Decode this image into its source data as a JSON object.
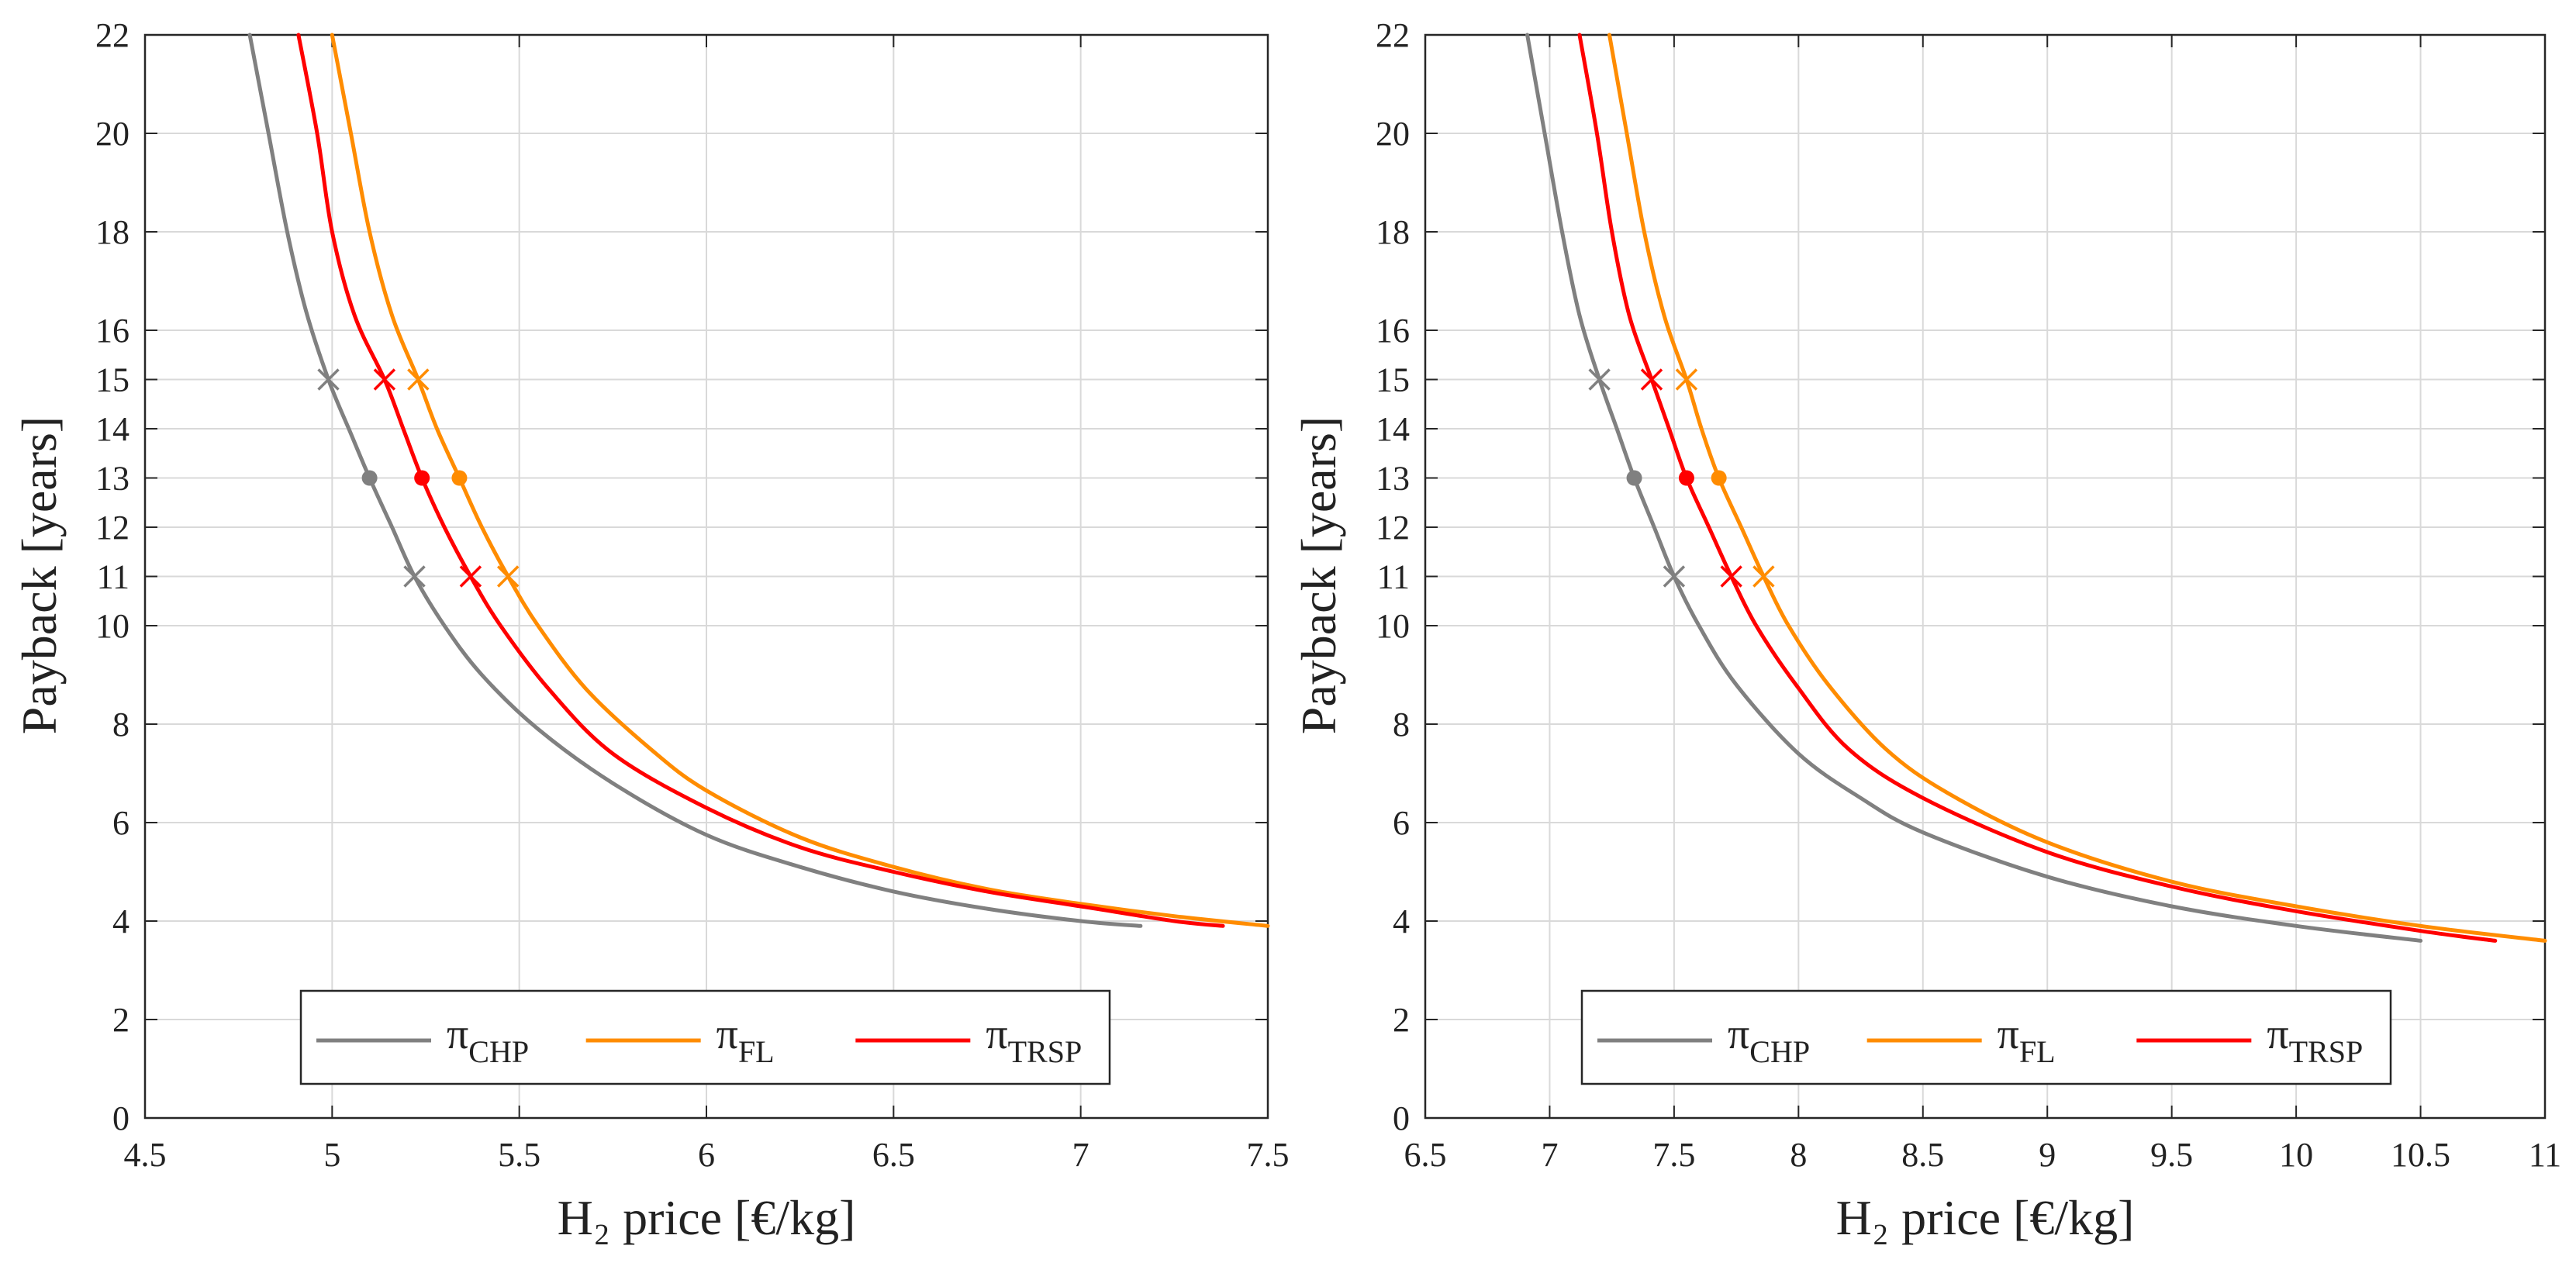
{
  "colors": {
    "CHP": "#808080",
    "FL": "#ff8c00",
    "TRSP": "#ff0000",
    "grid": "#d9d9d9",
    "axis": "#262626"
  },
  "chart_data": [
    {
      "type": "line",
      "xlabel": "H₂ price [€/kg]",
      "ylabel": "Payback [years]",
      "xlim": [
        4.5,
        7.5
      ],
      "ylim": [
        0,
        22
      ],
      "xticks": [
        4.5,
        5,
        5.5,
        6,
        6.5,
        7,
        7.5
      ],
      "xtick_labels": [
        "4.5",
        "5",
        "5.5",
        "6",
        "6.5",
        "7",
        "7.5"
      ],
      "yticks": [
        0,
        2,
        4,
        6,
        8,
        10,
        11,
        12,
        13,
        14,
        15,
        16,
        18,
        20,
        22
      ],
      "ytick_labels": [
        "0",
        "2",
        "4",
        "6",
        "8",
        "10",
        "11",
        "12",
        "13",
        "14",
        "15",
        "16",
        "18",
        "20",
        "22"
      ],
      "grid": true,
      "legend_position": "bottom-center",
      "series": [
        {
          "key": "CHP",
          "name": "π",
          "sub": "CHP",
          "x": [
            4.78,
            4.83,
            4.88,
            4.93,
            4.99,
            5.05,
            5.1,
            5.16,
            5.22,
            5.3,
            5.4,
            5.55,
            5.75,
            6.0,
            6.25,
            6.5,
            6.75,
            7.0,
            7.16
          ],
          "y": [
            22.0,
            20.0,
            18.0,
            16.4,
            15.0,
            13.9,
            13.0,
            12.0,
            11.0,
            10.0,
            9.0,
            7.9,
            6.8,
            5.75,
            5.1,
            4.6,
            4.25,
            4.0,
            3.9
          ],
          "crosses": [
            [
              4.99,
              15
            ],
            [
              5.22,
              11
            ]
          ],
          "dot": [
            5.1,
            13
          ]
        },
        {
          "key": "FL",
          "name": "π",
          "sub": "FL",
          "x": [
            5.0,
            5.05,
            5.1,
            5.16,
            5.23,
            5.28,
            5.34,
            5.4,
            5.47,
            5.55,
            5.68,
            5.85,
            6.0,
            6.25,
            6.5,
            6.75,
            7.0,
            7.25,
            7.5
          ],
          "y": [
            22.0,
            20.0,
            18.0,
            16.3,
            15.0,
            14.0,
            13.0,
            12.0,
            11.0,
            10.0,
            8.7,
            7.5,
            6.65,
            5.7,
            5.1,
            4.65,
            4.35,
            4.1,
            3.9
          ],
          "crosses": [
            [
              5.23,
              15
            ],
            [
              5.47,
              11
            ]
          ],
          "dot": [
            5.34,
            13
          ]
        },
        {
          "key": "TRSP",
          "name": "π",
          "sub": "TRSP",
          "x": [
            4.91,
            4.96,
            5.0,
            5.06,
            5.14,
            5.19,
            5.24,
            5.3,
            5.37,
            5.45,
            5.58,
            5.75,
            6.0,
            6.25,
            6.5,
            6.75,
            7.0,
            7.25,
            7.38
          ],
          "y": [
            22.0,
            20.0,
            18.0,
            16.3,
            15.0,
            14.0,
            13.0,
            12.0,
            11.0,
            10.0,
            8.7,
            7.4,
            6.3,
            5.5,
            5.0,
            4.6,
            4.3,
            4.0,
            3.9
          ],
          "crosses": [
            [
              5.14,
              15
            ],
            [
              5.37,
              11
            ]
          ],
          "dot": [
            5.24,
            13
          ]
        }
      ]
    },
    {
      "type": "line",
      "xlabel": "H₂ price [€/kg]",
      "ylabel": "Payback [years]",
      "xlim": [
        6.5,
        11
      ],
      "ylim": [
        0,
        22
      ],
      "xticks": [
        6.5,
        7,
        7.5,
        8,
        8.5,
        9,
        9.5,
        10,
        10.5,
        11
      ],
      "xtick_labels": [
        "6.5",
        "7",
        "7.5",
        "8",
        "8.5",
        "9",
        "9.5",
        "10",
        "10.5",
        "11"
      ],
      "yticks": [
        0,
        2,
        4,
        6,
        8,
        10,
        11,
        12,
        13,
        14,
        15,
        16,
        18,
        20,
        22
      ],
      "ytick_labels": [
        "0",
        "2",
        "4",
        "6",
        "8",
        "10",
        "11",
        "12",
        "13",
        "14",
        "15",
        "16",
        "18",
        "20",
        "22"
      ],
      "grid": true,
      "legend_position": "bottom-center",
      "series": [
        {
          "key": "CHP",
          "name": "π",
          "sub": "CHP",
          "x": [
            6.91,
            6.98,
            7.05,
            7.12,
            7.2,
            7.27,
            7.34,
            7.42,
            7.5,
            7.6,
            7.75,
            8.0,
            8.25,
            8.5,
            9.0,
            9.5,
            10.0,
            10.5
          ],
          "y": [
            22.0,
            20.0,
            18.0,
            16.3,
            15.0,
            14.0,
            13.0,
            12.0,
            11.0,
            10.0,
            8.8,
            7.4,
            6.5,
            5.8,
            4.9,
            4.3,
            3.9,
            3.6
          ],
          "crosses": [
            [
              7.2,
              15
            ],
            [
              7.5,
              11
            ]
          ],
          "dot": [
            7.34,
            13
          ]
        },
        {
          "key": "FL",
          "name": "π",
          "sub": "FL",
          "x": [
            7.24,
            7.31,
            7.38,
            7.46,
            7.55,
            7.61,
            7.68,
            7.77,
            7.86,
            7.96,
            8.12,
            8.35,
            8.6,
            9.0,
            9.5,
            10.0,
            10.5,
            11.0
          ],
          "y": [
            22.0,
            20.0,
            18.0,
            16.3,
            15.0,
            14.0,
            13.0,
            12.0,
            11.0,
            10.0,
            8.8,
            7.5,
            6.6,
            5.6,
            4.8,
            4.3,
            3.9,
            3.6
          ],
          "crosses": [
            [
              7.55,
              15
            ],
            [
              7.86,
              11
            ]
          ],
          "dot": [
            7.68,
            13
          ]
        },
        {
          "key": "TRSP",
          "name": "π",
          "sub": "TRSP",
          "x": [
            7.12,
            7.19,
            7.25,
            7.32,
            7.41,
            7.48,
            7.55,
            7.64,
            7.73,
            7.83,
            7.99,
            8.2,
            8.5,
            9.0,
            9.5,
            10.0,
            10.5,
            10.8
          ],
          "y": [
            22.0,
            20.0,
            18.0,
            16.3,
            15.0,
            14.0,
            13.0,
            12.0,
            11.0,
            10.0,
            8.8,
            7.5,
            6.5,
            5.4,
            4.7,
            4.2,
            3.8,
            3.6
          ],
          "crosses": [
            [
              7.41,
              15
            ],
            [
              7.73,
              11
            ]
          ],
          "dot": [
            7.55,
            13
          ]
        }
      ]
    }
  ]
}
